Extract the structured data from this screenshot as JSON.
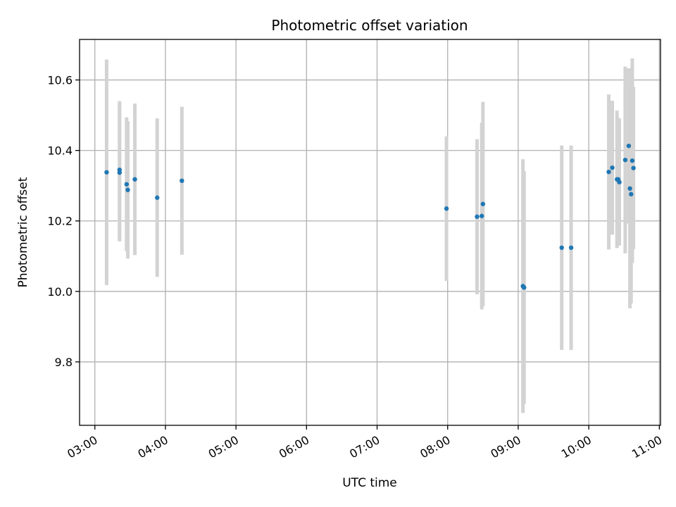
{
  "chart_data": {
    "type": "scatter",
    "title": "Photometric offset variation",
    "xlabel": "UTC time",
    "ylabel": "Photometric offset",
    "x_ticks": [
      "03:00",
      "04:00",
      "05:00",
      "06:00",
      "07:00",
      "08:00",
      "09:00",
      "10:00",
      "11:00"
    ],
    "y_ticks": [
      "9.8",
      "10.0",
      "10.2",
      "10.4",
      "10.6"
    ],
    "xlim": [
      "02:47",
      "11:01"
    ],
    "ylim": [
      9.62,
      10.715
    ],
    "grid": true,
    "colors": {
      "points": "#1f77b4",
      "errorbars": "#d3d3d3",
      "grid": "#b0b0b0"
    },
    "series": [
      {
        "points": [
          {
            "x": "03:10",
            "y": 10.338,
            "err": 0.32
          },
          {
            "x": "03:21",
            "y": 10.345,
            "err": 0.195
          },
          {
            "x": "03:21",
            "y": 10.337,
            "err": 0.195
          },
          {
            "x": "03:27",
            "y": 10.304,
            "err": 0.19
          },
          {
            "x": "03:28",
            "y": 10.288,
            "err": 0.195
          },
          {
            "x": "03:34",
            "y": 10.318,
            "err": 0.215
          },
          {
            "x": "03:53",
            "y": 10.266,
            "err": 0.225
          },
          {
            "x": "04:14",
            "y": 10.314,
            "err": 0.21
          },
          {
            "x": "07:59",
            "y": 10.235,
            "err": 0.205
          },
          {
            "x": "08:25",
            "y": 10.212,
            "err": 0.22
          },
          {
            "x": "08:29",
            "y": 10.214,
            "err": 0.265
          },
          {
            "x": "08:30",
            "y": 10.248,
            "err": 0.29
          },
          {
            "x": "09:04",
            "y": 10.015,
            "err": 0.36
          },
          {
            "x": "09:05",
            "y": 10.011,
            "err": 0.33
          },
          {
            "x": "09:37",
            "y": 10.124,
            "err": 0.29
          },
          {
            "x": "09:45",
            "y": 10.124,
            "err": 0.29
          },
          {
            "x": "10:17",
            "y": 10.339,
            "err": 0.22
          },
          {
            "x": "10:20",
            "y": 10.351,
            "err": 0.19
          },
          {
            "x": "10:24",
            "y": 10.318,
            "err": 0.195
          },
          {
            "x": "10:25",
            "y": 10.318,
            "err": 0.175
          },
          {
            "x": "10:26",
            "y": 10.31,
            "err": 0.18
          },
          {
            "x": "10:31",
            "y": 10.373,
            "err": 0.265
          },
          {
            "x": "10:34",
            "y": 10.413,
            "err": 0.22
          },
          {
            "x": "10:35",
            "y": 10.292,
            "err": 0.34
          },
          {
            "x": "10:36",
            "y": 10.276,
            "err": 0.31
          },
          {
            "x": "10:37",
            "y": 10.371,
            "err": 0.29
          },
          {
            "x": "10:38",
            "y": 10.35,
            "err": 0.23
          }
        ]
      }
    ]
  }
}
